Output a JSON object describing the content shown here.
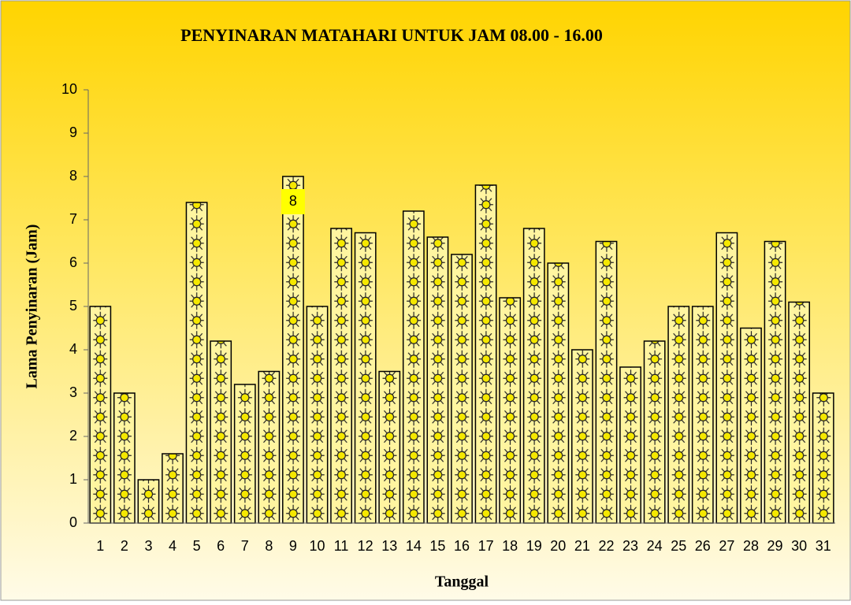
{
  "chart_data": {
    "type": "bar",
    "title": "PENYINARAN MATAHARI UNTUK JAM 08.00 - 16.00",
    "x_label": "Tanggal",
    "y_label": "Lama Penyinaran (Jam)",
    "categories": [
      "1",
      "2",
      "3",
      "4",
      "5",
      "6",
      "7",
      "8",
      "9",
      "10",
      "11",
      "12",
      "13",
      "14",
      "15",
      "16",
      "17",
      "18",
      "19",
      "20",
      "21",
      "22",
      "23",
      "24",
      "25",
      "26",
      "27",
      "28",
      "29",
      "30",
      "31"
    ],
    "values": [
      5,
      3,
      1,
      1.6,
      7.4,
      4.2,
      3.2,
      3.5,
      8,
      5,
      6.8,
      6.7,
      3.5,
      7.2,
      6.6,
      6.2,
      7.8,
      5.2,
      6.8,
      6,
      4,
      6.5,
      3.6,
      4.2,
      5,
      5,
      6.7,
      4.5,
      6.5,
      5.1,
      3
    ],
    "value_labels": [
      null,
      null,
      null,
      null,
      null,
      null,
      null,
      null,
      "8",
      null,
      null,
      null,
      null,
      null,
      null,
      null,
      null,
      null,
      null,
      null,
      null,
      null,
      null,
      null,
      null,
      null,
      null,
      null,
      null,
      null,
      null
    ],
    "color": "#fff5a0",
    "ylim": [
      0,
      10
    ],
    "yticks": [
      0,
      1,
      2,
      3,
      4,
      5,
      6,
      7,
      8,
      9,
      10
    ],
    "grid": false
  }
}
